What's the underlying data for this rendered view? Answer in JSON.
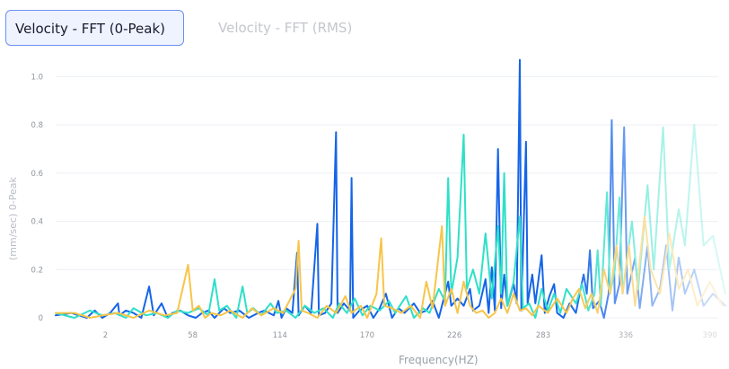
{
  "tabs": [
    {
      "label": "Velocity  - FFT (0-Peak)",
      "active": true
    },
    {
      "label": "Velocity  - FFT (RMS)",
      "active": false
    }
  ],
  "chart_data": {
    "type": "line",
    "title": "",
    "xlabel": "Frequency(HZ)",
    "ylabel": "(mm/sec) 0-Peak",
    "x_ticks": [
      "2",
      "58",
      "114",
      "170",
      "226",
      "283",
      "336",
      "390"
    ],
    "y_ticks": [
      "0",
      "0.2",
      "0.4",
      "0.6",
      "0.8",
      "1.0"
    ],
    "xlim": [
      -30,
      400
    ],
    "ylim": [
      0,
      1.05
    ],
    "grid": true,
    "legend": "none",
    "note_fade": "lines fade out toward the right edge",
    "series": [
      {
        "color": "#1565e8",
        "points": [
          [
            -30,
            0.01
          ],
          [
            -20,
            0.02
          ],
          [
            -10,
            0.0
          ],
          [
            -5,
            0.03
          ],
          [
            0,
            0.0
          ],
          [
            5,
            0.02
          ],
          [
            10,
            0.06
          ],
          [
            11,
            0.01
          ],
          [
            15,
            0.03
          ],
          [
            20,
            0.02
          ],
          [
            25,
            0.0
          ],
          [
            30,
            0.13
          ],
          [
            33,
            0.01
          ],
          [
            38,
            0.06
          ],
          [
            42,
            0.0
          ],
          [
            45,
            0.02
          ],
          [
            50,
            0.03
          ],
          [
            55,
            0.01
          ],
          [
            60,
            0.0
          ],
          [
            64,
            0.02
          ],
          [
            68,
            0.03
          ],
          [
            72,
            0.0
          ],
          [
            78,
            0.04
          ],
          [
            82,
            0.02
          ],
          [
            88,
            0.03
          ],
          [
            94,
            0.0
          ],
          [
            100,
            0.02
          ],
          [
            104,
            0.03
          ],
          [
            110,
            0.01
          ],
          [
            113,
            0.07
          ],
          [
            115,
            0.0
          ],
          [
            118,
            0.04
          ],
          [
            122,
            0.02
          ],
          [
            125,
            0.27
          ],
          [
            126,
            0.01
          ],
          [
            130,
            0.05
          ],
          [
            134,
            0.02
          ],
          [
            138,
            0.39
          ],
          [
            139,
            0.01
          ],
          [
            143,
            0.02
          ],
          [
            147,
            0.06
          ],
          [
            150,
            0.77
          ],
          [
            151,
            0.02
          ],
          [
            155,
            0.06
          ],
          [
            159,
            0.03
          ],
          [
            160,
            0.58
          ],
          [
            161,
            0.0
          ],
          [
            165,
            0.03
          ],
          [
            170,
            0.05
          ],
          [
            174,
            0.0
          ],
          [
            178,
            0.04
          ],
          [
            182,
            0.1
          ],
          [
            186,
            0.0
          ],
          [
            190,
            0.04
          ],
          [
            194,
            0.02
          ],
          [
            200,
            0.06
          ],
          [
            204,
            0.02
          ],
          [
            208,
            0.03
          ],
          [
            212,
            0.07
          ],
          [
            216,
            0.0
          ],
          [
            220,
            0.1
          ],
          [
            222,
            0.15
          ],
          [
            224,
            0.05
          ],
          [
            228,
            0.08
          ],
          [
            232,
            0.05
          ],
          [
            236,
            0.12
          ],
          [
            238,
            0.03
          ],
          [
            242,
            0.05
          ],
          [
            246,
            0.16
          ],
          [
            248,
            0.02
          ],
          [
            250,
            0.21
          ],
          [
            252,
            0.03
          ],
          [
            254,
            0.7
          ],
          [
            256,
            0.04
          ],
          [
            258,
            0.18
          ],
          [
            260,
            0.05
          ],
          [
            264,
            0.14
          ],
          [
            266,
            0.06
          ],
          [
            268,
            1.07
          ],
          [
            269,
            0.03
          ],
          [
            272,
            0.73
          ],
          [
            273,
            0.06
          ],
          [
            276,
            0.18
          ],
          [
            278,
            0.06
          ],
          [
            282,
            0.26
          ],
          [
            284,
            0.02
          ],
          [
            287,
            0.09
          ],
          [
            290,
            0.14
          ],
          [
            292,
            0.02
          ],
          [
            296,
            0.0
          ],
          [
            300,
            0.06
          ],
          [
            304,
            0.02
          ],
          [
            307,
            0.12
          ],
          [
            309,
            0.18
          ],
          [
            311,
            0.1
          ],
          [
            313,
            0.28
          ],
          [
            315,
            0.04
          ],
          [
            319,
            0.07
          ],
          [
            322,
            0.0
          ],
          [
            325,
            0.1
          ],
          [
            327,
            0.82
          ],
          [
            329,
            0.06
          ],
          [
            332,
            0.14
          ],
          [
            335,
            0.79
          ],
          [
            337,
            0.1
          ],
          [
            342,
            0.25
          ],
          [
            345,
            0.04
          ],
          [
            350,
            0.3
          ],
          [
            353,
            0.05
          ],
          [
            358,
            0.12
          ],
          [
            362,
            0.3
          ],
          [
            366,
            0.03
          ],
          [
            370,
            0.25
          ],
          [
            374,
            0.1
          ],
          [
            380,
            0.2
          ],
          [
            386,
            0.05
          ],
          [
            392,
            0.1
          ],
          [
            400,
            0.05
          ]
        ]
      },
      {
        "color": "#2ee0c8",
        "points": [
          [
            -30,
            0.02
          ],
          [
            -18,
            0.0
          ],
          [
            -8,
            0.03
          ],
          [
            0,
            0.01
          ],
          [
            8,
            0.02
          ],
          [
            15,
            0.0
          ],
          [
            20,
            0.04
          ],
          [
            28,
            0.01
          ],
          [
            35,
            0.02
          ],
          [
            42,
            0.0
          ],
          [
            48,
            0.03
          ],
          [
            55,
            0.02
          ],
          [
            62,
            0.04
          ],
          [
            68,
            0.01
          ],
          [
            72,
            0.16
          ],
          [
            75,
            0.03
          ],
          [
            80,
            0.05
          ],
          [
            86,
            0.0
          ],
          [
            90,
            0.13
          ],
          [
            93,
            0.02
          ],
          [
            97,
            0.04
          ],
          [
            102,
            0.01
          ],
          [
            108,
            0.06
          ],
          [
            112,
            0.02
          ],
          [
            118,
            0.03
          ],
          [
            124,
            0.0
          ],
          [
            130,
            0.05
          ],
          [
            136,
            0.02
          ],
          [
            142,
            0.04
          ],
          [
            148,
            0.0
          ],
          [
            152,
            0.06
          ],
          [
            157,
            0.02
          ],
          [
            162,
            0.08
          ],
          [
            167,
            0.01
          ],
          [
            172,
            0.05
          ],
          [
            178,
            0.03
          ],
          [
            184,
            0.07
          ],
          [
            188,
            0.02
          ],
          [
            195,
            0.09
          ],
          [
            200,
            0.0
          ],
          [
            206,
            0.04
          ],
          [
            210,
            0.02
          ],
          [
            216,
            0.12
          ],
          [
            220,
            0.07
          ],
          [
            222,
            0.58
          ],
          [
            224,
            0.1
          ],
          [
            228,
            0.25
          ],
          [
            232,
            0.76
          ],
          [
            234,
            0.12
          ],
          [
            238,
            0.2
          ],
          [
            242,
            0.1
          ],
          [
            246,
            0.35
          ],
          [
            250,
            0.08
          ],
          [
            254,
            0.38
          ],
          [
            256,
            0.1
          ],
          [
            258,
            0.6
          ],
          [
            260,
            0.05
          ],
          [
            264,
            0.15
          ],
          [
            268,
            0.42
          ],
          [
            270,
            0.04
          ],
          [
            274,
            0.06
          ],
          [
            278,
            0.0
          ],
          [
            282,
            0.12
          ],
          [
            286,
            0.03
          ],
          [
            290,
            0.1
          ],
          [
            294,
            0.02
          ],
          [
            298,
            0.12
          ],
          [
            304,
            0.06
          ],
          [
            308,
            0.14
          ],
          [
            312,
            0.03
          ],
          [
            316,
            0.1
          ],
          [
            318,
            0.28
          ],
          [
            320,
            0.05
          ],
          [
            324,
            0.52
          ],
          [
            326,
            0.1
          ],
          [
            329,
            0.2
          ],
          [
            332,
            0.5
          ],
          [
            334,
            0.1
          ],
          [
            340,
            0.4
          ],
          [
            344,
            0.12
          ],
          [
            350,
            0.55
          ],
          [
            354,
            0.2
          ],
          [
            360,
            0.79
          ],
          [
            364,
            0.2
          ],
          [
            370,
            0.45
          ],
          [
            374,
            0.3
          ],
          [
            380,
            0.8
          ],
          [
            386,
            0.3
          ],
          [
            392,
            0.34
          ],
          [
            400,
            0.1
          ]
        ]
      },
      {
        "color": "#f7c548",
        "points": [
          [
            -30,
            0.02
          ],
          [
            -18,
            0.02
          ],
          [
            -8,
            0.0
          ],
          [
            0,
            0.01
          ],
          [
            10,
            0.02
          ],
          [
            20,
            0.0
          ],
          [
            30,
            0.03
          ],
          [
            40,
            0.01
          ],
          [
            48,
            0.02
          ],
          [
            55,
            0.22
          ],
          [
            58,
            0.03
          ],
          [
            62,
            0.05
          ],
          [
            66,
            0.0
          ],
          [
            70,
            0.02
          ],
          [
            76,
            0.01
          ],
          [
            82,
            0.03
          ],
          [
            90,
            0.0
          ],
          [
            96,
            0.04
          ],
          [
            102,
            0.01
          ],
          [
            110,
            0.04
          ],
          [
            116,
            0.02
          ],
          [
            124,
            0.12
          ],
          [
            126,
            0.32
          ],
          [
            128,
            0.03
          ],
          [
            132,
            0.02
          ],
          [
            138,
            0.0
          ],
          [
            144,
            0.05
          ],
          [
            150,
            0.02
          ],
          [
            156,
            0.09
          ],
          [
            160,
            0.02
          ],
          [
            166,
            0.05
          ],
          [
            170,
            0.0
          ],
          [
            176,
            0.1
          ],
          [
            179,
            0.33
          ],
          [
            181,
            0.05
          ],
          [
            186,
            0.04
          ],
          [
            192,
            0.02
          ],
          [
            198,
            0.05
          ],
          [
            204,
            0.0
          ],
          [
            208,
            0.15
          ],
          [
            212,
            0.04
          ],
          [
            218,
            0.38
          ],
          [
            220,
            0.05
          ],
          [
            224,
            0.12
          ],
          [
            228,
            0.02
          ],
          [
            232,
            0.15
          ],
          [
            236,
            0.05
          ],
          [
            240,
            0.02
          ],
          [
            244,
            0.03
          ],
          [
            248,
            0.0
          ],
          [
            252,
            0.02
          ],
          [
            256,
            0.08
          ],
          [
            260,
            0.02
          ],
          [
            264,
            0.1
          ],
          [
            268,
            0.03
          ],
          [
            272,
            0.04
          ],
          [
            276,
            0.01
          ],
          [
            280,
            0.05
          ],
          [
            286,
            0.02
          ],
          [
            292,
            0.08
          ],
          [
            298,
            0.02
          ],
          [
            302,
            0.08
          ],
          [
            306,
            0.12
          ],
          [
            310,
            0.04
          ],
          [
            314,
            0.1
          ],
          [
            318,
            0.02
          ],
          [
            322,
            0.2
          ],
          [
            326,
            0.1
          ],
          [
            330,
            0.3
          ],
          [
            334,
            0.1
          ],
          [
            338,
            0.3
          ],
          [
            342,
            0.05
          ],
          [
            348,
            0.42
          ],
          [
            352,
            0.2
          ],
          [
            358,
            0.1
          ],
          [
            364,
            0.35
          ],
          [
            370,
            0.12
          ],
          [
            376,
            0.2
          ],
          [
            382,
            0.05
          ],
          [
            390,
            0.15
          ],
          [
            398,
            0.05
          ]
        ]
      }
    ]
  }
}
